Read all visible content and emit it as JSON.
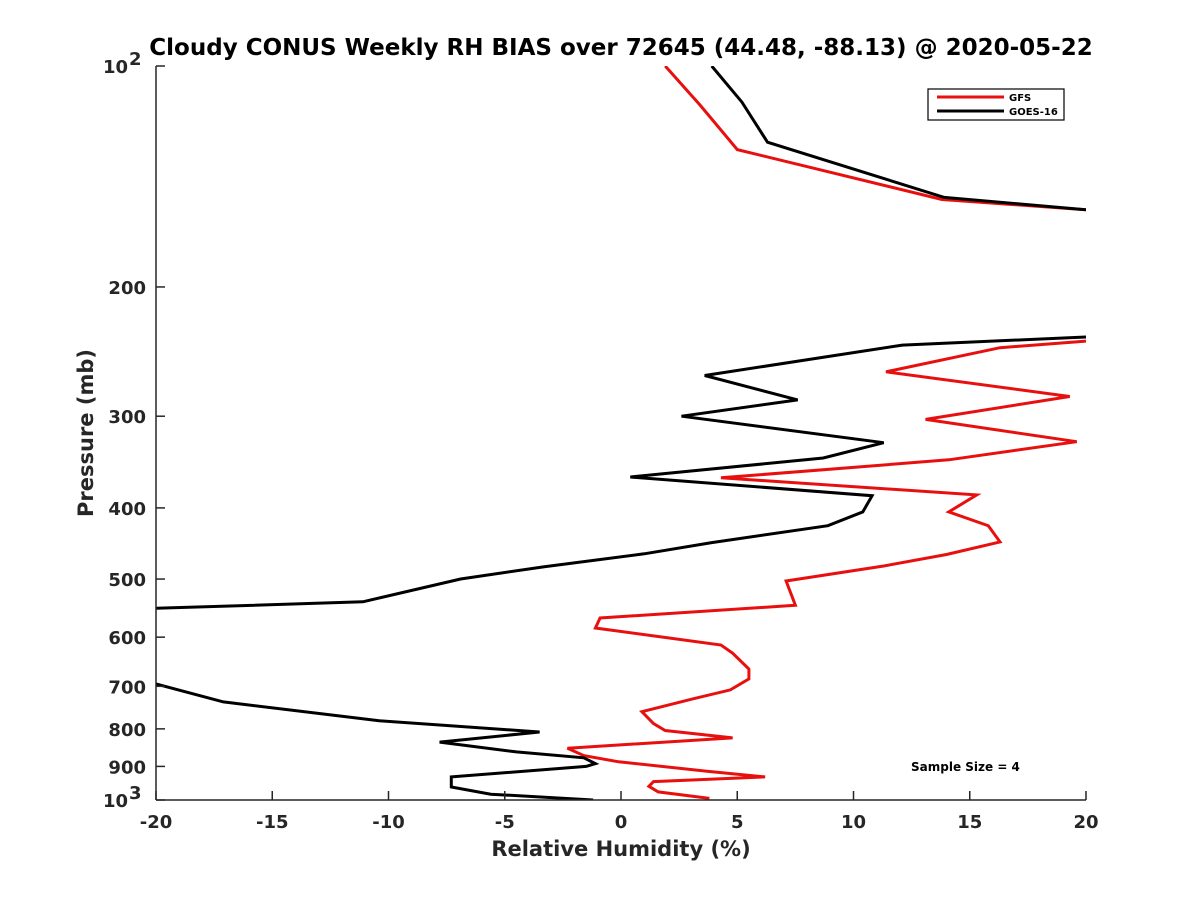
{
  "chart_data": {
    "type": "line",
    "title": "Cloudy CONUS Weekly RH BIAS over 72645 (44.48, -88.13) @ 2020-05-22",
    "xlabel": "Relative Humidity (%)",
    "ylabel": "Pressure (mb)",
    "xlim": [
      -20,
      20
    ],
    "ylim": [
      100,
      1000
    ],
    "yscale": "log",
    "y_reversed": true,
    "grid": false,
    "legend_position": "top-right",
    "x_ticks": [
      {
        "value": -20,
        "label": "-20"
      },
      {
        "value": -15,
        "label": "-15"
      },
      {
        "value": -10,
        "label": "-10"
      },
      {
        "value": -5,
        "label": "-5"
      },
      {
        "value": 0,
        "label": "0"
      },
      {
        "value": 5,
        "label": "5"
      },
      {
        "value": 10,
        "label": "10"
      },
      {
        "value": 15,
        "label": "15"
      },
      {
        "value": 20,
        "label": "20"
      }
    ],
    "y_ticks": [
      {
        "value": 100,
        "base": "10",
        "exp": "2"
      },
      {
        "value": 200,
        "base": "200",
        "exp": ""
      },
      {
        "value": 300,
        "base": "300",
        "exp": ""
      },
      {
        "value": 400,
        "base": "400",
        "exp": ""
      },
      {
        "value": 500,
        "base": "500",
        "exp": ""
      },
      {
        "value": 600,
        "base": "600",
        "exp": ""
      },
      {
        "value": 700,
        "base": "700",
        "exp": ""
      },
      {
        "value": 800,
        "base": "800",
        "exp": ""
      },
      {
        "value": 900,
        "base": "900",
        "exp": ""
      },
      {
        "value": 1000,
        "base": "10",
        "exp": "3"
      }
    ],
    "annotation": "Sample Size = 4",
    "series": [
      {
        "name": "GFS",
        "color": "#e8100f",
        "segments": [
          [
            [
              1.9,
              100
            ],
            [
              3.4,
              113
            ],
            [
              5.0,
              130
            ],
            [
              13.8,
              152
            ],
            [
              20,
              157
            ]
          ],
          [
            [
              20,
              237
            ],
            [
              16.3,
              242
            ],
            [
              11.4,
              261
            ],
            [
              19.3,
              282
            ],
            [
              13.1,
              303
            ],
            [
              19.6,
              325
            ],
            [
              14.1,
              344
            ],
            [
              4.3,
              364
            ],
            [
              15.3,
              384
            ],
            [
              14.1,
              405
            ],
            [
              15.8,
              423
            ],
            [
              16.3,
              445
            ],
            [
              14.0,
              463
            ],
            [
              11.3,
              480
            ],
            [
              7.1,
              503
            ],
            [
              7.5,
              543
            ],
            [
              -0.9,
              565
            ],
            [
              -1.1,
              583
            ],
            [
              4.3,
              615
            ],
            [
              4.8,
              631
            ],
            [
              5.5,
              663
            ],
            [
              5.5,
              684
            ],
            [
              4.7,
              708
            ],
            [
              3.1,
              728
            ],
            [
              0.9,
              758
            ],
            [
              1.4,
              787
            ],
            [
              1.9,
              804
            ],
            [
              4.8,
              823
            ],
            [
              -2.3,
              850
            ],
            [
              -1.6,
              870
            ],
            [
              -0.1,
              887
            ],
            [
              3.7,
              914
            ],
            [
              6.2,
              930
            ],
            [
              1.4,
              944
            ],
            [
              1.2,
              958
            ],
            [
              1.6,
              975
            ],
            [
              3.8,
              995
            ]
          ]
        ]
      },
      {
        "name": "GOES-16",
        "color": "#000000",
        "segments": [
          [
            [
              3.9,
              100
            ],
            [
              5.2,
              112
            ],
            [
              6.3,
              127
            ],
            [
              13.9,
              151
            ],
            [
              20,
              157
            ]
          ],
          [
            [
              20,
              234
            ],
            [
              12.1,
              240
            ],
            [
              3.6,
              264
            ],
            [
              7.6,
              285
            ],
            [
              2.6,
              300
            ],
            [
              11.3,
              326
            ],
            [
              8.7,
              342
            ],
            [
              0.4,
              363
            ],
            [
              10.8,
              385
            ],
            [
              10.4,
              405
            ],
            [
              8.9,
              423
            ],
            [
              3.9,
              446
            ],
            [
              1.0,
              462
            ],
            [
              -3.3,
              481
            ],
            [
              -6.9,
              500
            ],
            [
              -11.1,
              537
            ],
            [
              -20,
              548
            ]
          ],
          [
            [
              -20,
              695
            ],
            [
              -17.1,
              735
            ],
            [
              -10.4,
              780
            ],
            [
              -3.5,
              808
            ],
            [
              -7.8,
              834
            ],
            [
              -4.5,
              860
            ],
            [
              -1.6,
              876
            ],
            [
              -1.1,
              892
            ],
            [
              -1.5,
              900
            ],
            [
              -7.3,
              930
            ],
            [
              -7.3,
              960
            ],
            [
              -5.6,
              982
            ],
            [
              -1.2,
              1000
            ]
          ]
        ]
      }
    ]
  }
}
